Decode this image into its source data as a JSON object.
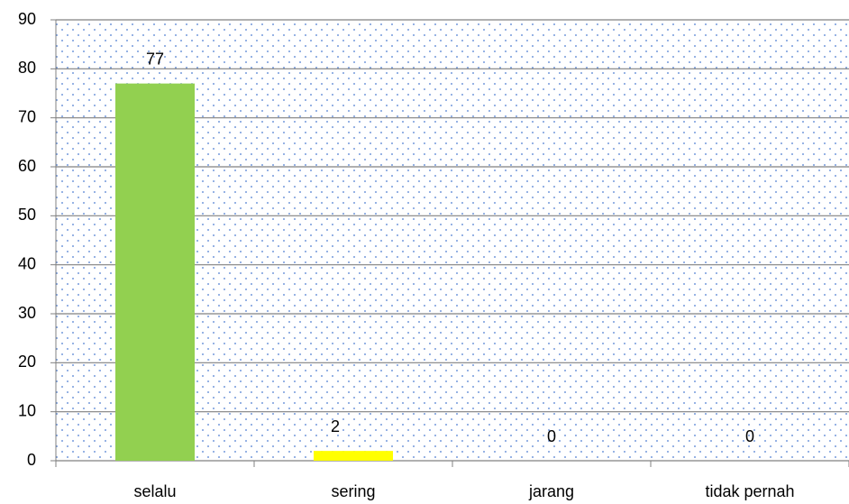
{
  "chart_data": {
    "type": "bar",
    "categories": [
      "selalu",
      "sering",
      "jarang",
      "tidak pernah"
    ],
    "values": [
      77,
      2,
      0,
      0
    ],
    "colors": [
      "#92d050",
      "#ffff00",
      "#4f81bd",
      "#c0504d"
    ],
    "ylim": [
      0,
      90
    ],
    "yticks": [
      0,
      10,
      20,
      30,
      40,
      50,
      60,
      70,
      80,
      90
    ],
    "grid": true,
    "data_labels": true
  }
}
